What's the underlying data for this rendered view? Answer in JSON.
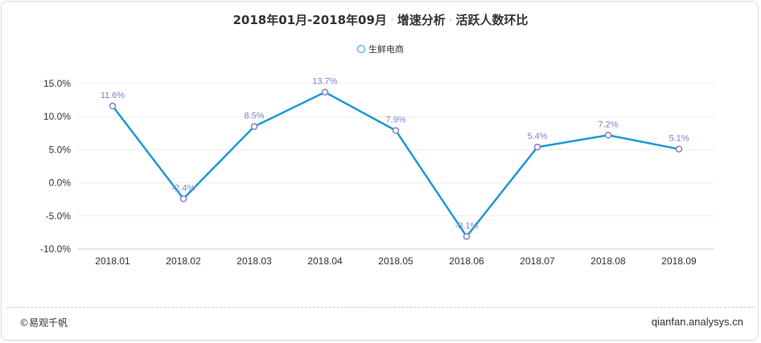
{
  "chart_data": {
    "type": "line",
    "title_parts": [
      "2018年01月-2018年09月",
      "增速分析",
      "活跃人数环比"
    ],
    "separator": "·",
    "categories": [
      "2018.01",
      "2018.02",
      "2018.03",
      "2018.04",
      "2018.05",
      "2018.06",
      "2018.07",
      "2018.08",
      "2018.09"
    ],
    "series": [
      {
        "name": "生鲜电商",
        "values": [
          11.6,
          -2.4,
          8.5,
          13.7,
          7.9,
          -8.1,
          5.4,
          7.2,
          5.1
        ],
        "labels": [
          "11.6%",
          "-2.4%",
          "8.5%",
          "13.7%",
          "7.9%",
          "-8.1%",
          "5.4%",
          "7.2%",
          "5.1%"
        ],
        "color": "#1c9ad6",
        "marker_color": "#8e7cc3"
      }
    ],
    "y_ticks": [
      15,
      10,
      5,
      0,
      -5,
      -10
    ],
    "y_tick_labels": [
      "15.0%",
      "10.0%",
      "5.0%",
      "0.0%",
      "-5.0%",
      "-10.0%"
    ],
    "ylim": [
      -10,
      15
    ],
    "legend_position": "top-center",
    "grid": true
  },
  "footer": {
    "copyright": "©易观千帆",
    "website": "qianfan.analysys.cn"
  }
}
